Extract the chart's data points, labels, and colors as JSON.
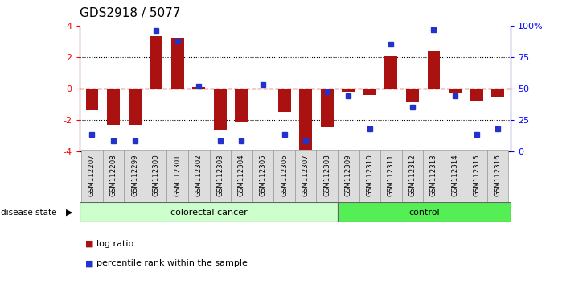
{
  "title": "GDS2918 / 5077",
  "samples": [
    "GSM112207",
    "GSM112208",
    "GSM112299",
    "GSM112300",
    "GSM112301",
    "GSM112302",
    "GSM112303",
    "GSM112304",
    "GSM112305",
    "GSM112306",
    "GSM112307",
    "GSM112308",
    "GSM112309",
    "GSM112310",
    "GSM112311",
    "GSM112312",
    "GSM112313",
    "GSM112314",
    "GSM112315",
    "GSM112316"
  ],
  "log_ratio": [
    -1.4,
    -2.3,
    -2.3,
    3.3,
    3.2,
    0.1,
    -2.7,
    -2.15,
    -0.05,
    -1.5,
    -3.9,
    -2.5,
    -0.2,
    -0.4,
    2.05,
    -0.9,
    2.4,
    -0.3,
    -0.8,
    -0.6
  ],
  "percentile": [
    13,
    8,
    8,
    96,
    88,
    52,
    8,
    8,
    53,
    13,
    8,
    47,
    44,
    18,
    85,
    35,
    97,
    44,
    13,
    18
  ],
  "colorectal_count": 12,
  "control_count": 8,
  "ylim_left": [
    -4,
    4
  ],
  "ylim_right": [
    0,
    100
  ],
  "left_ticks": [
    -4,
    -2,
    0,
    2,
    4
  ],
  "right_ticks": [
    0,
    25,
    50,
    75,
    100
  ],
  "bar_color": "#aa1111",
  "dot_color": "#2233cc",
  "colorectal_color": "#ccffcc",
  "control_color": "#55ee55",
  "zero_line_color": "#cc0000",
  "legend_bar_label": "log ratio",
  "legend_dot_label": "percentile rank within the sample",
  "group_label": "disease state",
  "group1_label": "colorectal cancer",
  "group2_label": "control"
}
